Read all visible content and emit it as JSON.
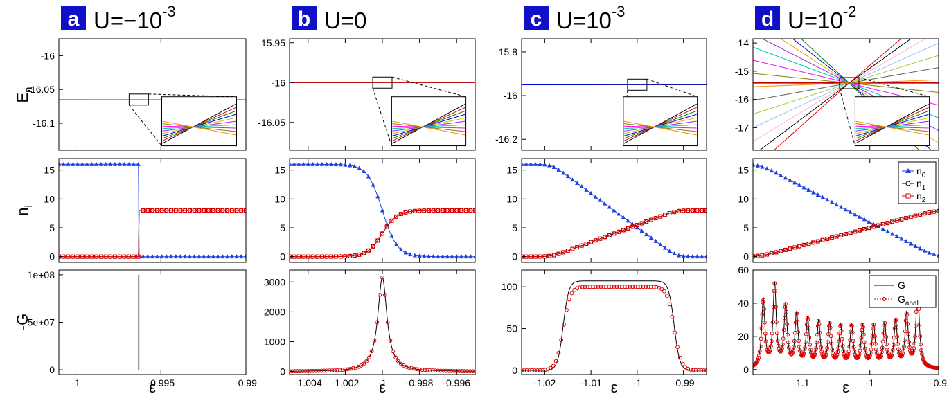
{
  "figure": {
    "colors": {
      "badge": "#1010c8",
      "badge_text": "#ffffff",
      "n0": "#1f3fe0",
      "n1": "#000000",
      "n2": "#e00000",
      "G": "#000000",
      "G_anal": "#e00000",
      "level_palette": [
        "#000000",
        "#e00000",
        "#008000",
        "#0000e0",
        "#e0b000",
        "#8a2be2",
        "#00c0c0",
        "#ff00ff",
        "#808000",
        "#ff8c00",
        "#606060",
        "#a0d030",
        "#90c0ff",
        "#ffb6c1"
      ]
    },
    "row_labels": {
      "energy": {
        "main": "E",
        "sub": "n"
      },
      "occupation": {
        "main": "n",
        "sub": "i"
      },
      "conductance": {
        "main": "-G",
        "sub": ""
      }
    },
    "x_label": "ε",
    "legend_n": [
      {
        "main": "n",
        "sub": "0"
      },
      {
        "main": "n",
        "sub": "1"
      },
      {
        "main": "n",
        "sub": "2"
      }
    ],
    "legend_g": [
      {
        "main": "G",
        "sub": ""
      },
      {
        "main": "G",
        "sub": "anal"
      }
    ]
  },
  "chart_data": [
    {
      "panel": "a",
      "heading": {
        "text": "U=−10",
        "sup": "-3"
      },
      "type": "line",
      "x_range": [
        -1.001,
        -0.99
      ],
      "x_ticks": [
        "-1",
        "-0.995",
        "-0.99"
      ],
      "x_tick_values": [
        -1,
        -0.995,
        -0.99
      ],
      "energy": {
        "y_range": [
          -16.14,
          -15.975
        ],
        "y_ticks": [
          "-16",
          "-16.05",
          "-16.1"
        ],
        "y_tick_values": [
          -16,
          -16.05,
          -16.1
        ],
        "model": {
          "center": -0.9963,
          "E0": -16.065,
          "slope_spacing": 0.0016,
          "slope_offset": 0.0035,
          "levels": 12,
          "flat_levels": 1,
          "kink": false
        }
      },
      "occupation": {
        "y_range": [
          -1,
          17
        ],
        "y_ticks": [
          "0",
          "5",
          "10",
          "15"
        ],
        "y_tick_values": [
          0,
          5,
          10,
          15
        ],
        "model": {
          "kind": "step",
          "center": -0.9963,
          "n_total": 16
        }
      },
      "conductance": {
        "y_range": [
          -5000000,
          105000000
        ],
        "y_ticks": [
          "0",
          "5e+07",
          "1e+08"
        ],
        "y_tick_values": [
          0,
          50000000,
          100000000
        ],
        "model": {
          "kind": "spike",
          "center": -0.9963,
          "peak": 100000000
        }
      }
    },
    {
      "panel": "b",
      "heading": {
        "text": "U=0",
        "sup": ""
      },
      "type": "line",
      "x_range": [
        -1.005,
        -0.995
      ],
      "x_ticks": [
        "-1.004",
        "-1.002",
        "-1",
        "-0.998",
        "-0.996"
      ],
      "x_tick_values": [
        -1.004,
        -1.002,
        -1,
        -0.998,
        -0.996
      ],
      "energy": {
        "y_range": [
          -16.085,
          -15.945
        ],
        "y_ticks": [
          "-15.95",
          "-16",
          "-16.05"
        ],
        "y_tick_values": [
          -15.95,
          -16,
          -16.05
        ],
        "model": {
          "center": -1.0,
          "E0": -16.0,
          "slope_spacing": 0.0018,
          "slope_offset": 0.0004,
          "levels": 16,
          "flat_levels": 1,
          "kink": false
        }
      },
      "occupation": {
        "y_range": [
          -1,
          17
        ],
        "y_ticks": [
          "0",
          "5",
          "10",
          "15"
        ],
        "y_tick_values": [
          0,
          5,
          10,
          15
        ],
        "model": {
          "kind": "sigmoid",
          "center": -1.0,
          "width": 0.0004,
          "n_total": 16
        }
      },
      "conductance": {
        "y_range": [
          -100,
          3400
        ],
        "y_ticks": [
          "0",
          "1000",
          "2000",
          "3000"
        ],
        "y_tick_values": [
          0,
          1000,
          2000,
          3000
        ],
        "model": {
          "kind": "lorentz",
          "centers": [
            -1.0
          ],
          "width": 0.0003,
          "peak": 3150,
          "anal_offset": 0
        }
      }
    },
    {
      "panel": "c",
      "heading": {
        "text": "U=10",
        "sup": "-3"
      },
      "type": "line",
      "x_range": [
        -1.025,
        -0.985
      ],
      "x_ticks": [
        "-1.02",
        "-1.01",
        "-1",
        "-0.99"
      ],
      "x_tick_values": [
        -1.02,
        -1.01,
        -1,
        -0.99
      ],
      "energy": {
        "y_range": [
          -16.25,
          -15.74
        ],
        "y_ticks": [
          "-15.8",
          "-16",
          "-16.2"
        ],
        "y_tick_values": [
          -15.8,
          -16,
          -16.2
        ],
        "model": {
          "center": -1.0,
          "E0": -15.95,
          "slope_spacing": 0.0035,
          "slope_offset": 0.0012,
          "levels": 18,
          "flat_levels": 2,
          "kink": true
        }
      },
      "occupation": {
        "y_range": [
          -1,
          17
        ],
        "y_ticks": [
          "0",
          "5",
          "10",
          "15"
        ],
        "y_tick_values": [
          0,
          5,
          10,
          15
        ],
        "model": {
          "kind": "ramp",
          "start": -1.0185,
          "end": -0.9915,
          "n_total": 16
        }
      },
      "conductance": {
        "y_range": [
          -5,
          120
        ],
        "y_ticks": [
          "0",
          "50",
          "100"
        ],
        "y_tick_values": [
          0,
          50,
          100
        ],
        "model": {
          "kind": "plateau",
          "start": -1.016,
          "end": -0.992,
          "height": 107,
          "anal_height": 100,
          "edge": 0.0006
        }
      }
    },
    {
      "panel": "d",
      "heading": {
        "text": "U=10",
        "sup": "-2"
      },
      "type": "line",
      "x_range": [
        -1.17,
        -0.9
      ],
      "x_ticks": [
        "-1.1",
        "-1",
        "-0.9"
      ],
      "x_tick_values": [
        -1.1,
        -1,
        -0.9
      ],
      "energy": {
        "y_range": [
          -17.8,
          -13.85
        ],
        "y_ticks": [
          "-14",
          "-15",
          "-16",
          "-17"
        ],
        "y_tick_values": [
          -14,
          -15,
          -16,
          -17
        ],
        "model": {
          "center": -1.03,
          "E0": -15.42,
          "slope_spacing": 3.4,
          "slope_offset": 0.9,
          "levels": 16,
          "flat_levels": 2,
          "kink": true
        }
      },
      "occupation": {
        "y_range": [
          -1,
          17
        ],
        "y_ticks": [
          "0",
          "5",
          "10",
          "15"
        ],
        "y_tick_values": [
          0,
          5,
          10,
          15
        ],
        "model": {
          "kind": "ramp",
          "start": -1.16,
          "end": -0.905,
          "n_total": 16
        }
      },
      "conductance": {
        "y_range": [
          -3,
          60
        ],
        "y_ticks": [
          "0",
          "20",
          "40",
          "60"
        ],
        "y_tick_values": [
          0,
          20,
          40,
          60
        ],
        "model": {
          "kind": "peaks",
          "centers": [
            -1.155,
            -1.1385,
            -1.1225,
            -1.1065,
            -1.0905,
            -1.0745,
            -1.0585,
            -1.0425,
            -1.0265,
            -1.0105,
            -0.9945,
            -0.9785,
            -0.9625,
            -0.9465,
            -0.9305
          ],
          "heights": [
            41,
            50,
            37,
            32,
            29,
            27,
            26,
            25,
            25,
            25,
            25,
            26,
            28,
            32,
            49
          ],
          "width": 0.0028
        }
      }
    }
  ]
}
